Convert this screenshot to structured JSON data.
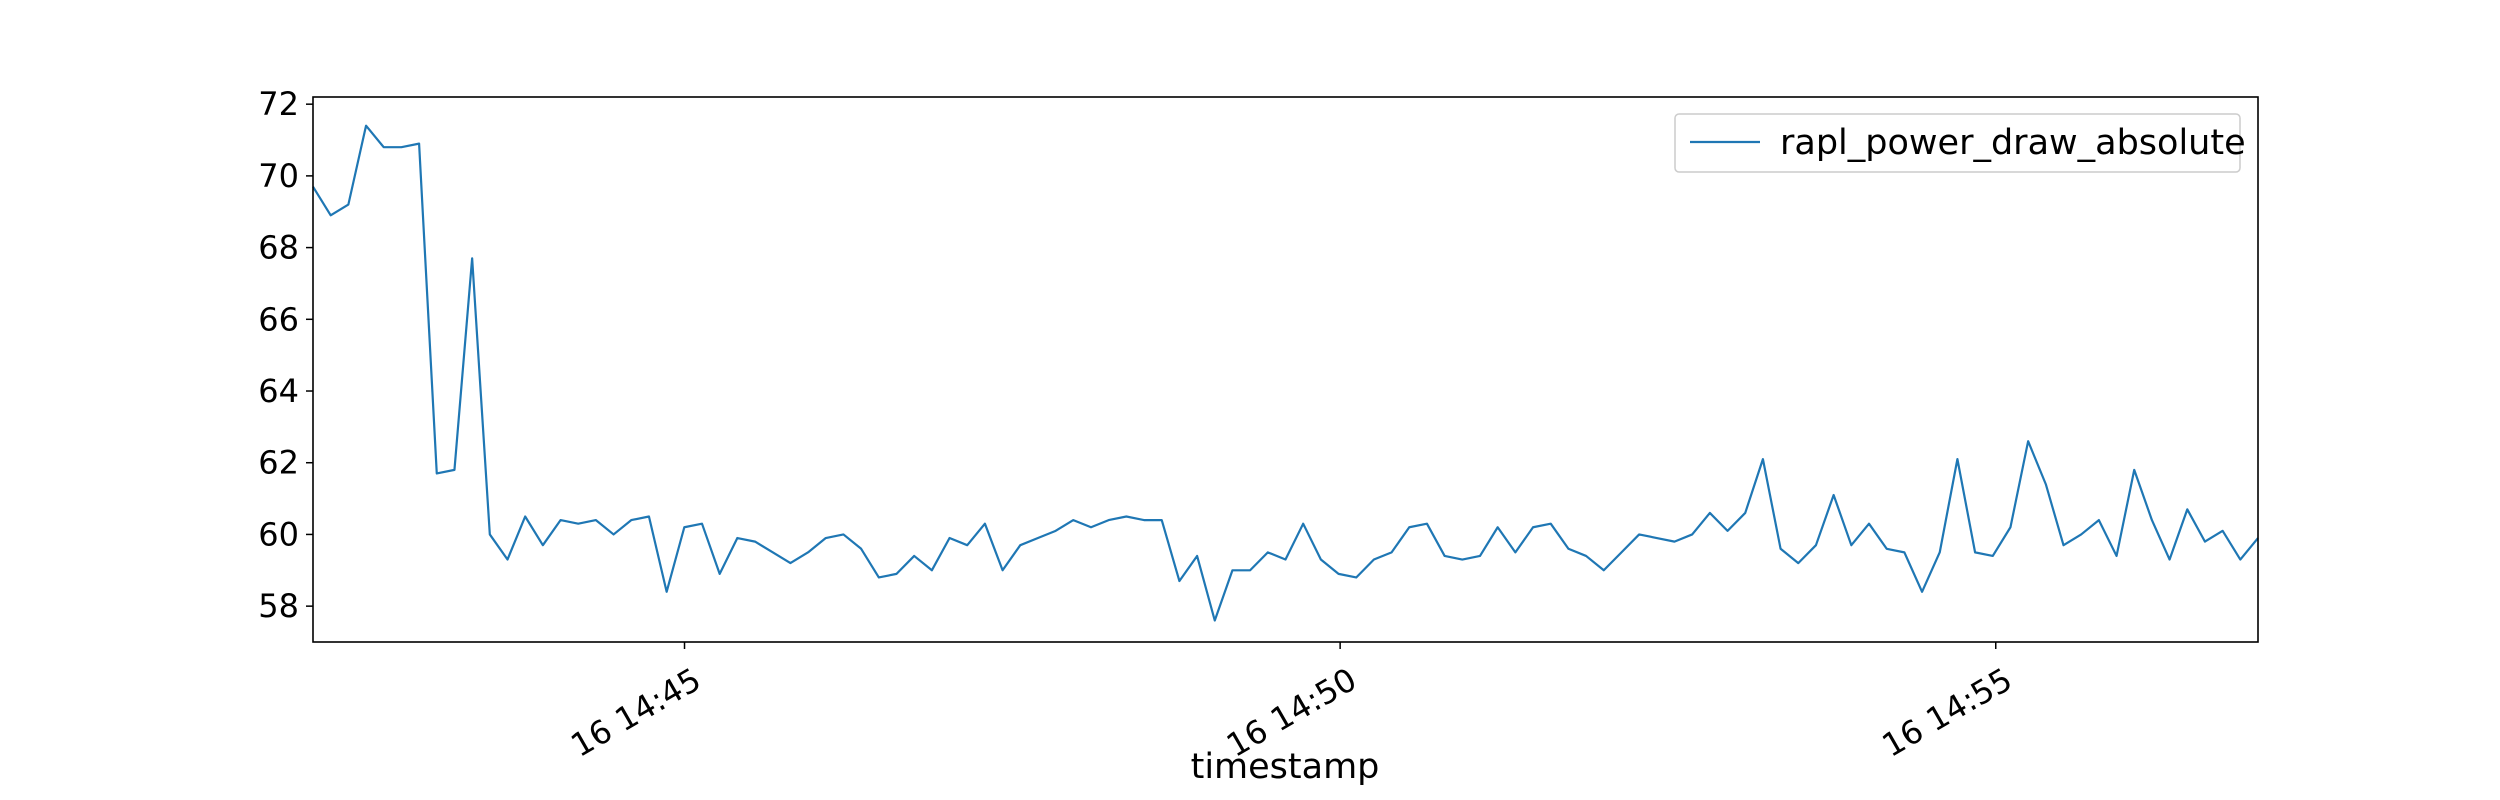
{
  "chart_data": {
    "type": "line",
    "title": "",
    "xlabel": "timestamp",
    "ylabel": "",
    "x_start": "16 14:42:10",
    "x_end": "16 14:57:00",
    "xlim": [
      "16 14:42:10",
      "16 14:57:00"
    ],
    "ylim": [
      57.0,
      72.2
    ],
    "x_ticks": [
      "16 14:45",
      "16 14:50",
      "16 14:55"
    ],
    "y_ticks": [
      58,
      60,
      62,
      64,
      66,
      68,
      70,
      72
    ],
    "grid": false,
    "legend_position": "top-right",
    "series": [
      {
        "name": "rapl_power_draw_absolute",
        "color": "#1f77b4",
        "values": [
          69.7,
          68.9,
          69.2,
          71.4,
          70.8,
          70.8,
          70.9,
          61.7,
          61.8,
          67.7,
          60.0,
          59.3,
          60.5,
          59.7,
          60.4,
          60.3,
          60.4,
          60.0,
          60.4,
          60.5,
          58.4,
          60.2,
          60.3,
          58.9,
          59.9,
          59.8,
          59.5,
          59.2,
          59.5,
          59.9,
          60.0,
          59.6,
          58.8,
          58.9,
          59.4,
          59.0,
          59.9,
          59.7,
          60.3,
          59.0,
          59.7,
          59.9,
          60.1,
          60.4,
          60.2,
          60.4,
          60.5,
          60.4,
          60.4,
          58.7,
          59.4,
          57.6,
          59.0,
          59.0,
          59.5,
          59.3,
          60.3,
          59.3,
          58.9,
          58.8,
          59.3,
          59.5,
          60.2,
          60.3,
          59.4,
          59.3,
          59.4,
          60.2,
          59.5,
          60.2,
          60.3,
          59.6,
          59.4,
          59.0,
          59.5,
          60.0,
          59.9,
          59.8,
          60.0,
          60.6,
          60.1,
          60.6,
          62.1,
          59.6,
          59.2,
          59.7,
          61.1,
          59.7,
          60.3,
          59.6,
          59.5,
          58.4,
          59.5,
          62.1,
          59.5,
          59.4,
          60.2,
          62.6,
          61.4,
          59.7,
          60.0,
          60.4,
          59.4,
          61.8,
          60.4,
          59.3,
          60.7,
          59.8,
          60.1,
          59.3,
          59.9
        ]
      }
    ]
  }
}
